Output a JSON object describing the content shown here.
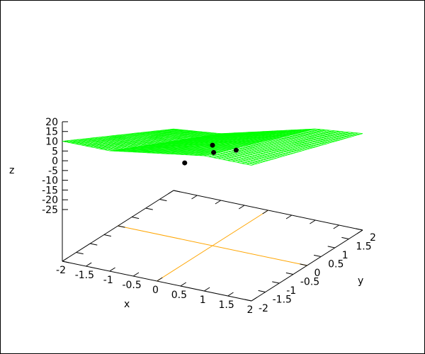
{
  "chart_data": {
    "type": "surface3d",
    "xlabel": "x",
    "ylabel": "y",
    "zlabel": "z",
    "xlim": [
      -2,
      2
    ],
    "ylim": [
      -2,
      2
    ],
    "xticks": [
      "-2",
      "-1.5",
      "-1",
      "-0.5",
      "0",
      "0.5",
      "1",
      "1.5",
      "2"
    ],
    "yticks": [
      "-2",
      "-1.5",
      "-1",
      "-0.5",
      "0",
      "0.5",
      "1",
      "1.5",
      "2"
    ],
    "zticks": [
      "20",
      "15",
      "10",
      "5",
      "0",
      "-5",
      "-10",
      "-15",
      "-20",
      "-25"
    ],
    "surface": {
      "color": "#00ff00",
      "x": [
        -2,
        -1,
        0,
        1,
        2
      ],
      "y": [
        -2,
        -1,
        0,
        1,
        2
      ],
      "z": [
        [
          10.0,
          10.2,
          14.0,
          17.8,
          18.0
        ],
        [
          2.5,
          3.3,
          7.75,
          12.2,
          13.0
        ],
        [
          -5.0,
          -3.6,
          1.5,
          6.6,
          8.0
        ],
        [
          -12.5,
          -10.4,
          -4.75,
          0.9,
          3.0
        ],
        [
          -20.0,
          -17.3,
          -11.0,
          -4.7,
          -2.0
        ]
      ]
    },
    "points": {
      "color": "#000000",
      "values": [
        [
          0,
          -1,
          0
        ],
        [
          0.2,
          -0.3,
          0
        ],
        [
          0,
          0,
          0
        ],
        [
          0.5,
          0,
          0
        ]
      ]
    },
    "base_lines": {
      "color": "#ffa500",
      "lines": [
        {
          "x": 0
        },
        {
          "y": 0
        }
      ]
    }
  }
}
